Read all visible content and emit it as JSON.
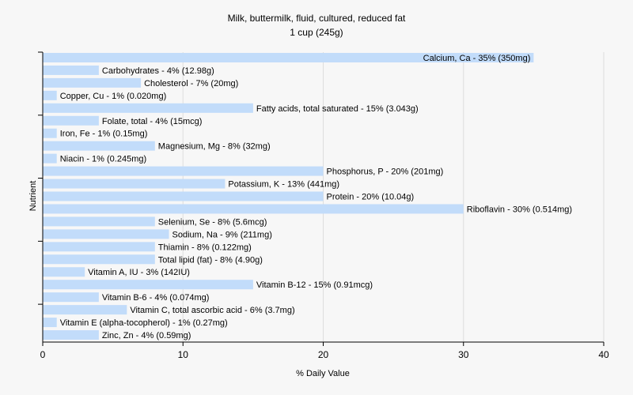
{
  "chart_data": {
    "type": "bar",
    "orientation": "horizontal",
    "title": "Milk, buttermilk, fluid, cultured, reduced fat",
    "subtitle": "1 cup (245g)",
    "xlabel": "% Daily Value",
    "ylabel": "Nutrient",
    "xlim": [
      0,
      40
    ],
    "xticks": [
      0,
      10,
      20,
      30,
      40
    ],
    "grid": true,
    "bar_color": "#c2dcfa",
    "categories": [
      "Calcium, Ca",
      "Carbohydrates",
      "Cholesterol",
      "Copper, Cu",
      "Fatty acids, total saturated",
      "Folate, total",
      "Iron, Fe",
      "Magnesium, Mg",
      "Niacin",
      "Phosphorus, P",
      "Potassium, K",
      "Protein",
      "Riboflavin",
      "Selenium, Se",
      "Sodium, Na",
      "Thiamin",
      "Total lipid (fat)",
      "Vitamin A, IU",
      "Vitamin B-12",
      "Vitamin B-6",
      "Vitamin C, total ascorbic acid",
      "Vitamin E (alpha-tocopherol)",
      "Zinc, Zn"
    ],
    "values": [
      35,
      4,
      7,
      1,
      15,
      4,
      1,
      8,
      1,
      20,
      13,
      20,
      30,
      8,
      9,
      8,
      8,
      3,
      15,
      4,
      6,
      1,
      4
    ],
    "labels": [
      "Calcium, Ca - 35% (350mg)",
      "Carbohydrates - 4% (12.98g)",
      "Cholesterol - 7% (20mg)",
      "Copper, Cu - 1% (0.020mg)",
      "Fatty acids, total saturated - 15% (3.043g)",
      "Folate, total - 4% (15mcg)",
      "Iron, Fe - 1% (0.15mg)",
      "Magnesium, Mg - 8% (32mg)",
      "Niacin - 1% (0.245mg)",
      "Phosphorus, P - 20% (201mg)",
      "Potassium, K - 13% (441mg)",
      "Protein - 20% (10.04g)",
      "Riboflavin - 30% (0.514mg)",
      "Selenium, Se - 8% (5.6mcg)",
      "Sodium, Na - 9% (211mg)",
      "Thiamin - 8% (0.122mg)",
      "Total lipid (fat) - 8% (4.90g)",
      "Vitamin A, IU - 3% (142IU)",
      "Vitamin B-12 - 15% (0.91mcg)",
      "Vitamin B-6 - 4% (0.074mg)",
      "Vitamin C, total ascorbic acid - 6% (3.7mg)",
      "Vitamin E (alpha-tocopherol) - 1% (0.27mg)",
      "Zinc, Zn - 4% (0.59mg)"
    ]
  }
}
